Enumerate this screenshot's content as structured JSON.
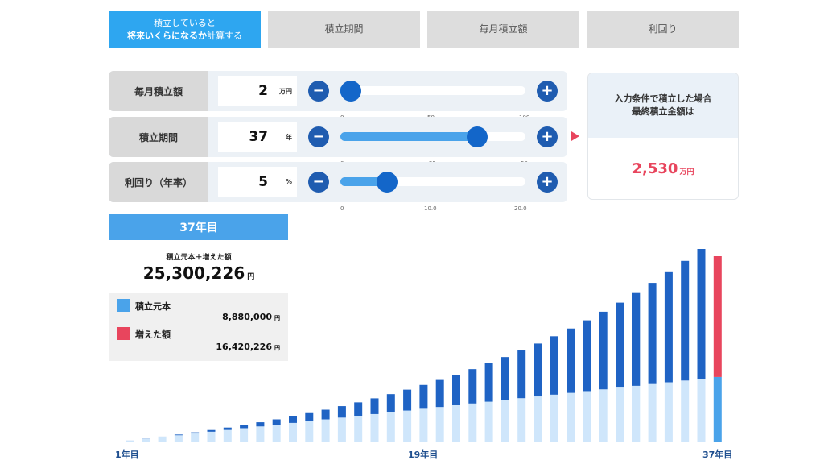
{
  "tabs": [
    {
      "line1": "積立していると",
      "line2a": "将来いくらになるか",
      "line2b": "計算する",
      "active": true
    },
    {
      "label": "積立期間"
    },
    {
      "label": "毎月積立額"
    },
    {
      "label": "利回り"
    }
  ],
  "controls": [
    {
      "label": "毎月積立額",
      "value": "2",
      "unit": "万円",
      "min": 0,
      "max": 100,
      "current": 2,
      "ticks": [
        "0",
        "50",
        "100"
      ]
    },
    {
      "label": "積立期間",
      "value": "37",
      "unit": "年",
      "min": 0,
      "max": 50,
      "current": 37,
      "ticks": [
        "0",
        "25",
        "50"
      ]
    },
    {
      "label": "利回り（年率）",
      "value": "5",
      "unit": "%",
      "min": 0,
      "max": 20,
      "current": 5,
      "ticks": [
        "0",
        "10.0",
        "20.0"
      ]
    }
  ],
  "buttons": {
    "minus": "−",
    "plus": "+"
  },
  "result": {
    "line1": "入力条件で積立した場合",
    "line2": "最終積立金額は",
    "value": "2,530",
    "unit": "万円"
  },
  "info": {
    "year_label": "37年目",
    "subtitle": "積立元本＋増えた額",
    "total": "25,300,226",
    "total_unit": "円",
    "principal_label": "積立元本",
    "principal_value": "8,880,000",
    "principal_unit": "円",
    "gain_label": "増えた額",
    "gain_value": "16,420,226",
    "gain_unit": "円"
  },
  "colors": {
    "principal": "#cfe6fb",
    "principal_selected": "#4aa3ea",
    "gain": "#1f63c4",
    "gain_selected": "#e8455d",
    "accent": "#2ea6f0"
  },
  "chart_data": {
    "type": "bar",
    "stacked": true,
    "categories_labels": [
      "1年目",
      "19年目",
      "37年目"
    ],
    "monthly_yen": 20000,
    "annual_rate": 0.05,
    "years": 37,
    "selected_year": 37,
    "series": [
      {
        "name": "積立元本",
        "values": [
          240000,
          480000,
          720000,
          960000,
          1200000,
          1440000,
          1680000,
          1920000,
          2160000,
          2400000,
          2640000,
          2880000,
          3120000,
          3360000,
          3600000,
          3840000,
          4080000,
          4320000,
          4560000,
          4800000,
          5040000,
          5280000,
          5520000,
          5760000,
          6000000,
          6240000,
          6480000,
          6720000,
          6960000,
          7200000,
          7440000,
          7680000,
          7920000,
          8160000,
          8400000,
          8640000,
          8880000
        ]
      },
      {
        "name": "増えた額",
        "values": [
          5000,
          22000,
          52000,
          96000,
          156000,
          232000,
          325000,
          437000,
          568000,
          720000,
          894000,
          1091000,
          1313000,
          1560000,
          1835000,
          2139000,
          2473000,
          2840000,
          3241000,
          3678000,
          4153000,
          4669000,
          5228000,
          5832000,
          6484000,
          7186000,
          7941000,
          8752000,
          9622000,
          10554000,
          11551000,
          12617000,
          13756000,
          14971000,
          16266000,
          17646000,
          16420226
        ]
      }
    ]
  }
}
